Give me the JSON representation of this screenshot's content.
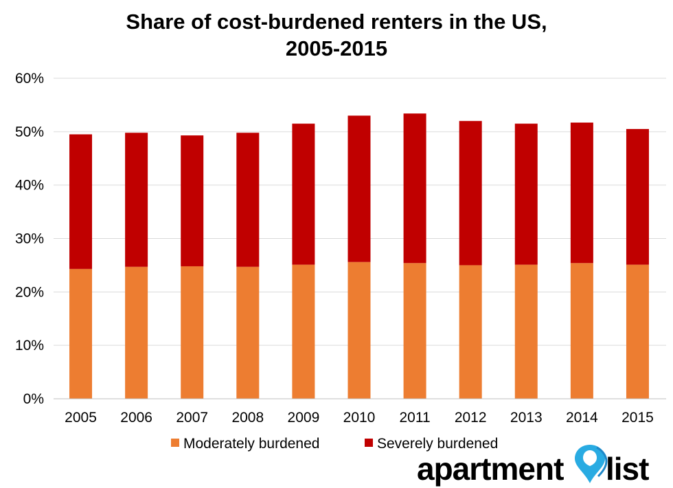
{
  "chart_data": {
    "type": "bar",
    "stacked": true,
    "title_lines": [
      "Share of cost-burdened renters in the US,",
      "2005-2015"
    ],
    "categories": [
      "2005",
      "2006",
      "2007",
      "2008",
      "2009",
      "2010",
      "2011",
      "2012",
      "2013",
      "2014",
      "2015"
    ],
    "series": [
      {
        "name": "Moderately burdened",
        "color": "#ED7D31",
        "values": [
          24.3,
          24.7,
          24.8,
          24.7,
          25.1,
          25.6,
          25.4,
          25.0,
          25.1,
          25.4,
          25.1
        ]
      },
      {
        "name": "Severely burdened",
        "color": "#C00000",
        "values": [
          25.2,
          25.1,
          24.5,
          25.1,
          26.4,
          27.4,
          28.0,
          27.0,
          26.4,
          26.3,
          25.4
        ]
      }
    ],
    "ylim": [
      0,
      60
    ],
    "yticks": [
      0,
      10,
      20,
      30,
      40,
      50,
      60
    ],
    "ytick_labels": [
      "0%",
      "10%",
      "20%",
      "30%",
      "40%",
      "50%",
      "60%"
    ],
    "grid": true,
    "legend_position": "bottom"
  },
  "logo": {
    "text_left": "apartment",
    "text_right": "list",
    "pin_color": "#29ABE2",
    "icon": "location-pin-icon"
  }
}
